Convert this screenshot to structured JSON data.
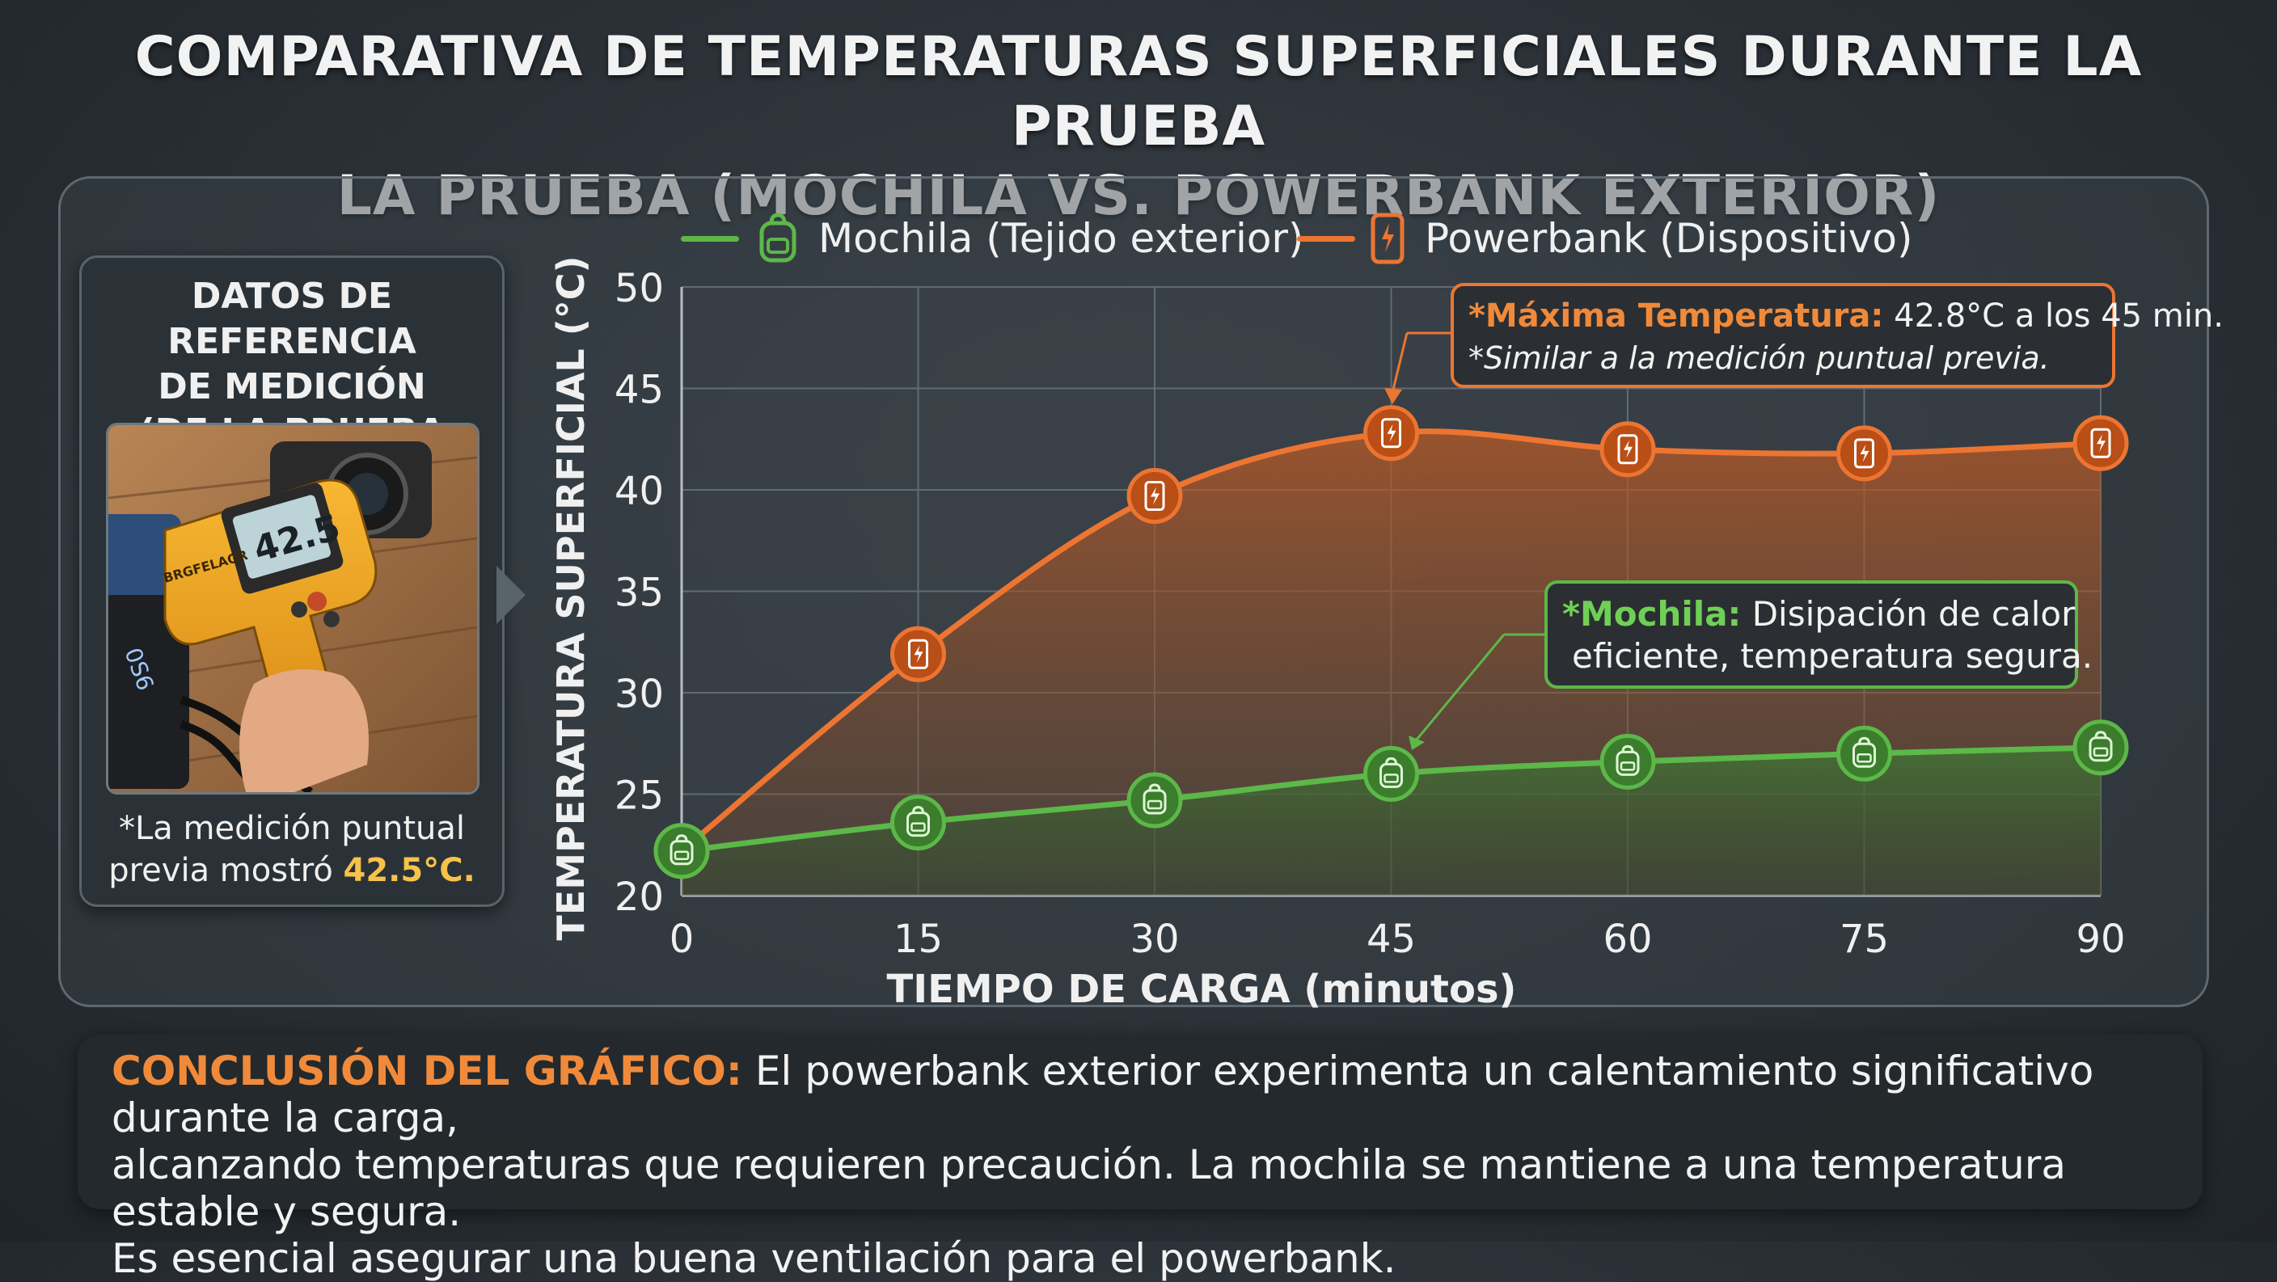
{
  "title_line1": "COMPARATIVA DE TEMPERATURAS SUPERFICIALES DURANTE LA PRUEBA",
  "title_line2": "LA PRUEBA (MOCHILA VS. POWERBANK EXTERIOR)",
  "reference": {
    "title_line1": "DATOS DE REFERENCIA",
    "title_line2": "DE MEDICIÓN",
    "title_line3": "(DE LA PRUEBA PREVIA)",
    "thermometer_brand": "BRGFELAGR",
    "thermometer_reading": "42.5",
    "note_line1": "*La medición puntual",
    "note_line2": "previa mostró ",
    "note_value": "42.5°C."
  },
  "legend": {
    "mochila": "Mochila (Tejido exterior)",
    "powerbank": "Powerbank (Dispositivo)"
  },
  "annotations": {
    "powerbank_label": "*Máxima Temperatura:",
    "powerbank_value": " 42.8°C a los 45 min.",
    "powerbank_note": "*Similar a la medición puntual previa.",
    "mochila_label": "*Mochila:",
    "mochila_line1": " Disipación de calor",
    "mochila_line2": "eficiente, temperatura segura."
  },
  "conclusion": {
    "label": "CONCLUSIÓN DEL GRÁFICO:",
    "line1": " El powerbank exterior experimenta un calentamiento significativo durante la carga,",
    "line2": "alcanzando temperaturas que requieren precaución. La mochila se mantiene a una temperatura estable y segura.",
    "line3": "Es esencial asegurar una buena ventilación para el powerbank."
  },
  "colors": {
    "mochila": "#5cb848",
    "powerbank": "#ec7532",
    "mochila_label": "#6fd055",
    "powerbank_label": "#f08a3a"
  },
  "chart_data": {
    "type": "line",
    "title": "",
    "xlabel": "TIEMPO DE CARGA (minutos)",
    "ylabel": "TEMPERATURA SUPERFICIAL (°C)",
    "x": [
      0,
      15,
      30,
      45,
      60,
      75,
      90
    ],
    "xlim": [
      0,
      90
    ],
    "ylim": [
      20,
      50
    ],
    "yticks": [
      20,
      25,
      30,
      35,
      40,
      45,
      50
    ],
    "grid": true,
    "legend_position": "top",
    "series": [
      {
        "name": "Mochila (Tejido exterior)",
        "values": [
          22.2,
          23.6,
          24.7,
          26.0,
          26.6,
          27.0,
          27.3
        ]
      },
      {
        "name": "Powerbank (Dispositivo)",
        "values": [
          22.2,
          31.9,
          39.7,
          42.8,
          42.0,
          41.8,
          42.3
        ]
      }
    ]
  }
}
